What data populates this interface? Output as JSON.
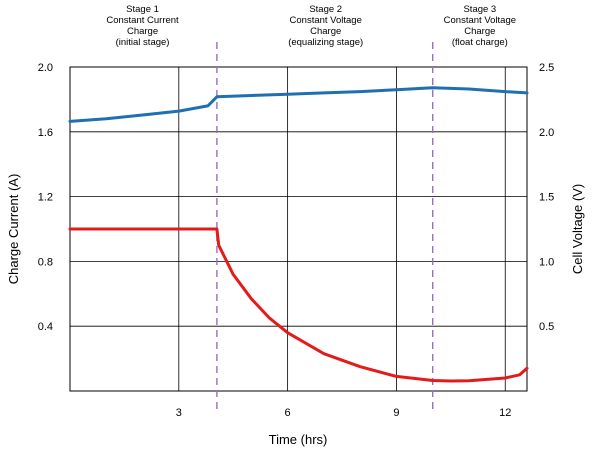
{
  "chart_data": {
    "type": "line",
    "xlabel": "Time (hrs)",
    "ylabel_left": "Charge Current (A)",
    "ylabel_right": "Cell Voltage (V)",
    "xlim": [
      0,
      12.6
    ],
    "ylim_left": [
      0,
      2.0
    ],
    "ylim_right": [
      0,
      2.5
    ],
    "xticks": [
      3,
      6,
      9,
      12
    ],
    "yticks_left": [
      0.4,
      0.8,
      1.2,
      1.6,
      2.0
    ],
    "yticks_left_labels": [
      "0.4",
      "0.8",
      "1.2",
      "1.6",
      "2.0"
    ],
    "yticks_right": [
      0.5,
      1.0,
      1.5,
      2.0,
      2.5
    ],
    "yticks_right_labels": [
      "0.5",
      "1.0",
      "1.5",
      "2.0",
      "2.5"
    ],
    "grid": true,
    "stage_boundaries": [
      4.05,
      10.0
    ],
    "stages": [
      {
        "lines": [
          "Stage 1",
          "Constant Current",
          "Charge",
          "(initial stage)"
        ],
        "x": 2.0
      },
      {
        "lines": [
          "Stage 2",
          "Constant Voltage",
          "Charge",
          "(equalizing stage)"
        ],
        "x": 7.05
      },
      {
        "lines": [
          "Stage 3",
          "Constant Voltage",
          "Charge",
          "(float charge)"
        ],
        "x": 11.3
      }
    ],
    "series": [
      {
        "axis": "right",
        "color": "#1f6fb2",
        "x": [
          0,
          1,
          2,
          3,
          3.8,
          4.05,
          5,
          6,
          7,
          8,
          9,
          10,
          11,
          12,
          12.6
        ],
        "y": [
          2.08,
          2.1,
          2.13,
          2.16,
          2.2,
          2.27,
          2.28,
          2.29,
          2.3,
          2.31,
          2.325,
          2.34,
          2.33,
          2.31,
          2.3
        ]
      },
      {
        "axis": "left",
        "color": "#e31b1b",
        "x": [
          0,
          1,
          2,
          3,
          4.05,
          4.1,
          4.5,
          5,
          5.5,
          6,
          7,
          8,
          9,
          10,
          10.5,
          11,
          12,
          12.4,
          12.6
        ],
        "y": [
          1.0,
          1.0,
          1.0,
          1.0,
          1.0,
          0.9,
          0.72,
          0.57,
          0.45,
          0.36,
          0.23,
          0.15,
          0.09,
          0.065,
          0.062,
          0.063,
          0.08,
          0.1,
          0.14
        ]
      }
    ]
  }
}
